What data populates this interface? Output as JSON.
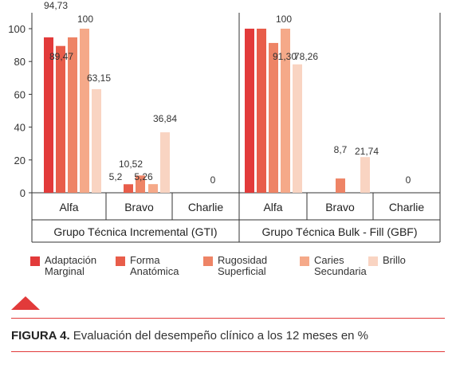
{
  "chart_data": {
    "type": "bar",
    "ylim": [
      0,
      100
    ],
    "yticks": [
      0,
      20,
      40,
      60,
      80,
      100
    ],
    "groups": [
      {
        "label": "Grupo Técnica Incremental (GTI)",
        "categories": [
          "Alfa",
          "Bravo",
          "Charlie"
        ]
      },
      {
        "label": "Grupo Técnica Bulk - Fill (GBF)",
        "categories": [
          "Alfa",
          "Bravo",
          "Charlie"
        ]
      }
    ],
    "series": [
      {
        "name": "Adaptación Marginal",
        "color": "#e23a3a",
        "values": [
          [
            94.73,
            0,
            0
          ],
          [
            100,
            0,
            0
          ]
        ]
      },
      {
        "name": "Forma Anatómica",
        "color": "#e85d4a",
        "values": [
          [
            89.47,
            5.2,
            0
          ],
          [
            100,
            0,
            0
          ]
        ]
      },
      {
        "name": "Rugosidad Superficial",
        "color": "#ee8466",
        "values": [
          [
            94.73,
            10.52,
            0
          ],
          [
            91.3,
            8.7,
            0
          ]
        ]
      },
      {
        "name": "Caries Secundaria",
        "color": "#f5a989",
        "values": [
          [
            100,
            5.26,
            0
          ],
          [
            100,
            0,
            0
          ]
        ]
      },
      {
        "name": "Brillo",
        "color": "#f9d4c2",
        "values": [
          [
            63.15,
            36.84,
            0
          ],
          [
            78.26,
            21.74,
            0
          ]
        ]
      }
    ],
    "data_labels": [
      [
        [
          "94,73",
          "89,47",
          "100",
          "63,15"
        ],
        [
          "5,2",
          "10,52",
          "5,26",
          "36,84"
        ],
        [
          "0"
        ]
      ],
      [
        [
          "91,30",
          "100",
          "78,26"
        ],
        [
          "8,7",
          "21,74"
        ],
        [
          "0"
        ]
      ]
    ]
  },
  "legend": [
    {
      "line1": "Adaptación",
      "line2": "Marginal",
      "color": "#e23a3a"
    },
    {
      "line1": "Forma",
      "line2": "Anatómica",
      "color": "#e85d4a"
    },
    {
      "line1": "Rugosidad",
      "line2": "Superficial",
      "color": "#ee8466"
    },
    {
      "line1": "Caries",
      "line2": "Secundaria",
      "color": "#f5a989"
    },
    {
      "line1": "Brillo",
      "line2": "",
      "color": "#f9d4c2"
    }
  ],
  "caption": {
    "bold": "FIGURA 4.",
    "text": " Evaluación del desempeño clínico a los 12 meses en %"
  }
}
